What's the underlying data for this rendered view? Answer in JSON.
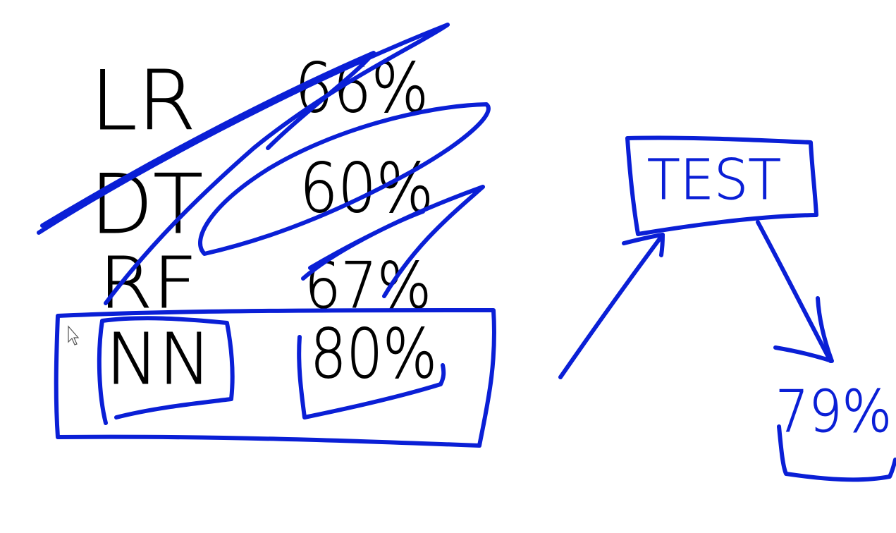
{
  "colors": {
    "background": "#ffffff",
    "ink_black": "#000000",
    "ink_blue": "#0a1fd6"
  },
  "rows": [
    {
      "model": "LR",
      "score": "66%"
    },
    {
      "model": "DT",
      "score": "60%"
    },
    {
      "model": "RF",
      "score": "67%"
    },
    {
      "model": "NN",
      "score": "80%"
    }
  ],
  "test_box": {
    "label": "TEST"
  },
  "result": {
    "value": "79%"
  },
  "cursor": {
    "icon": "arrow-cursor-icon"
  }
}
